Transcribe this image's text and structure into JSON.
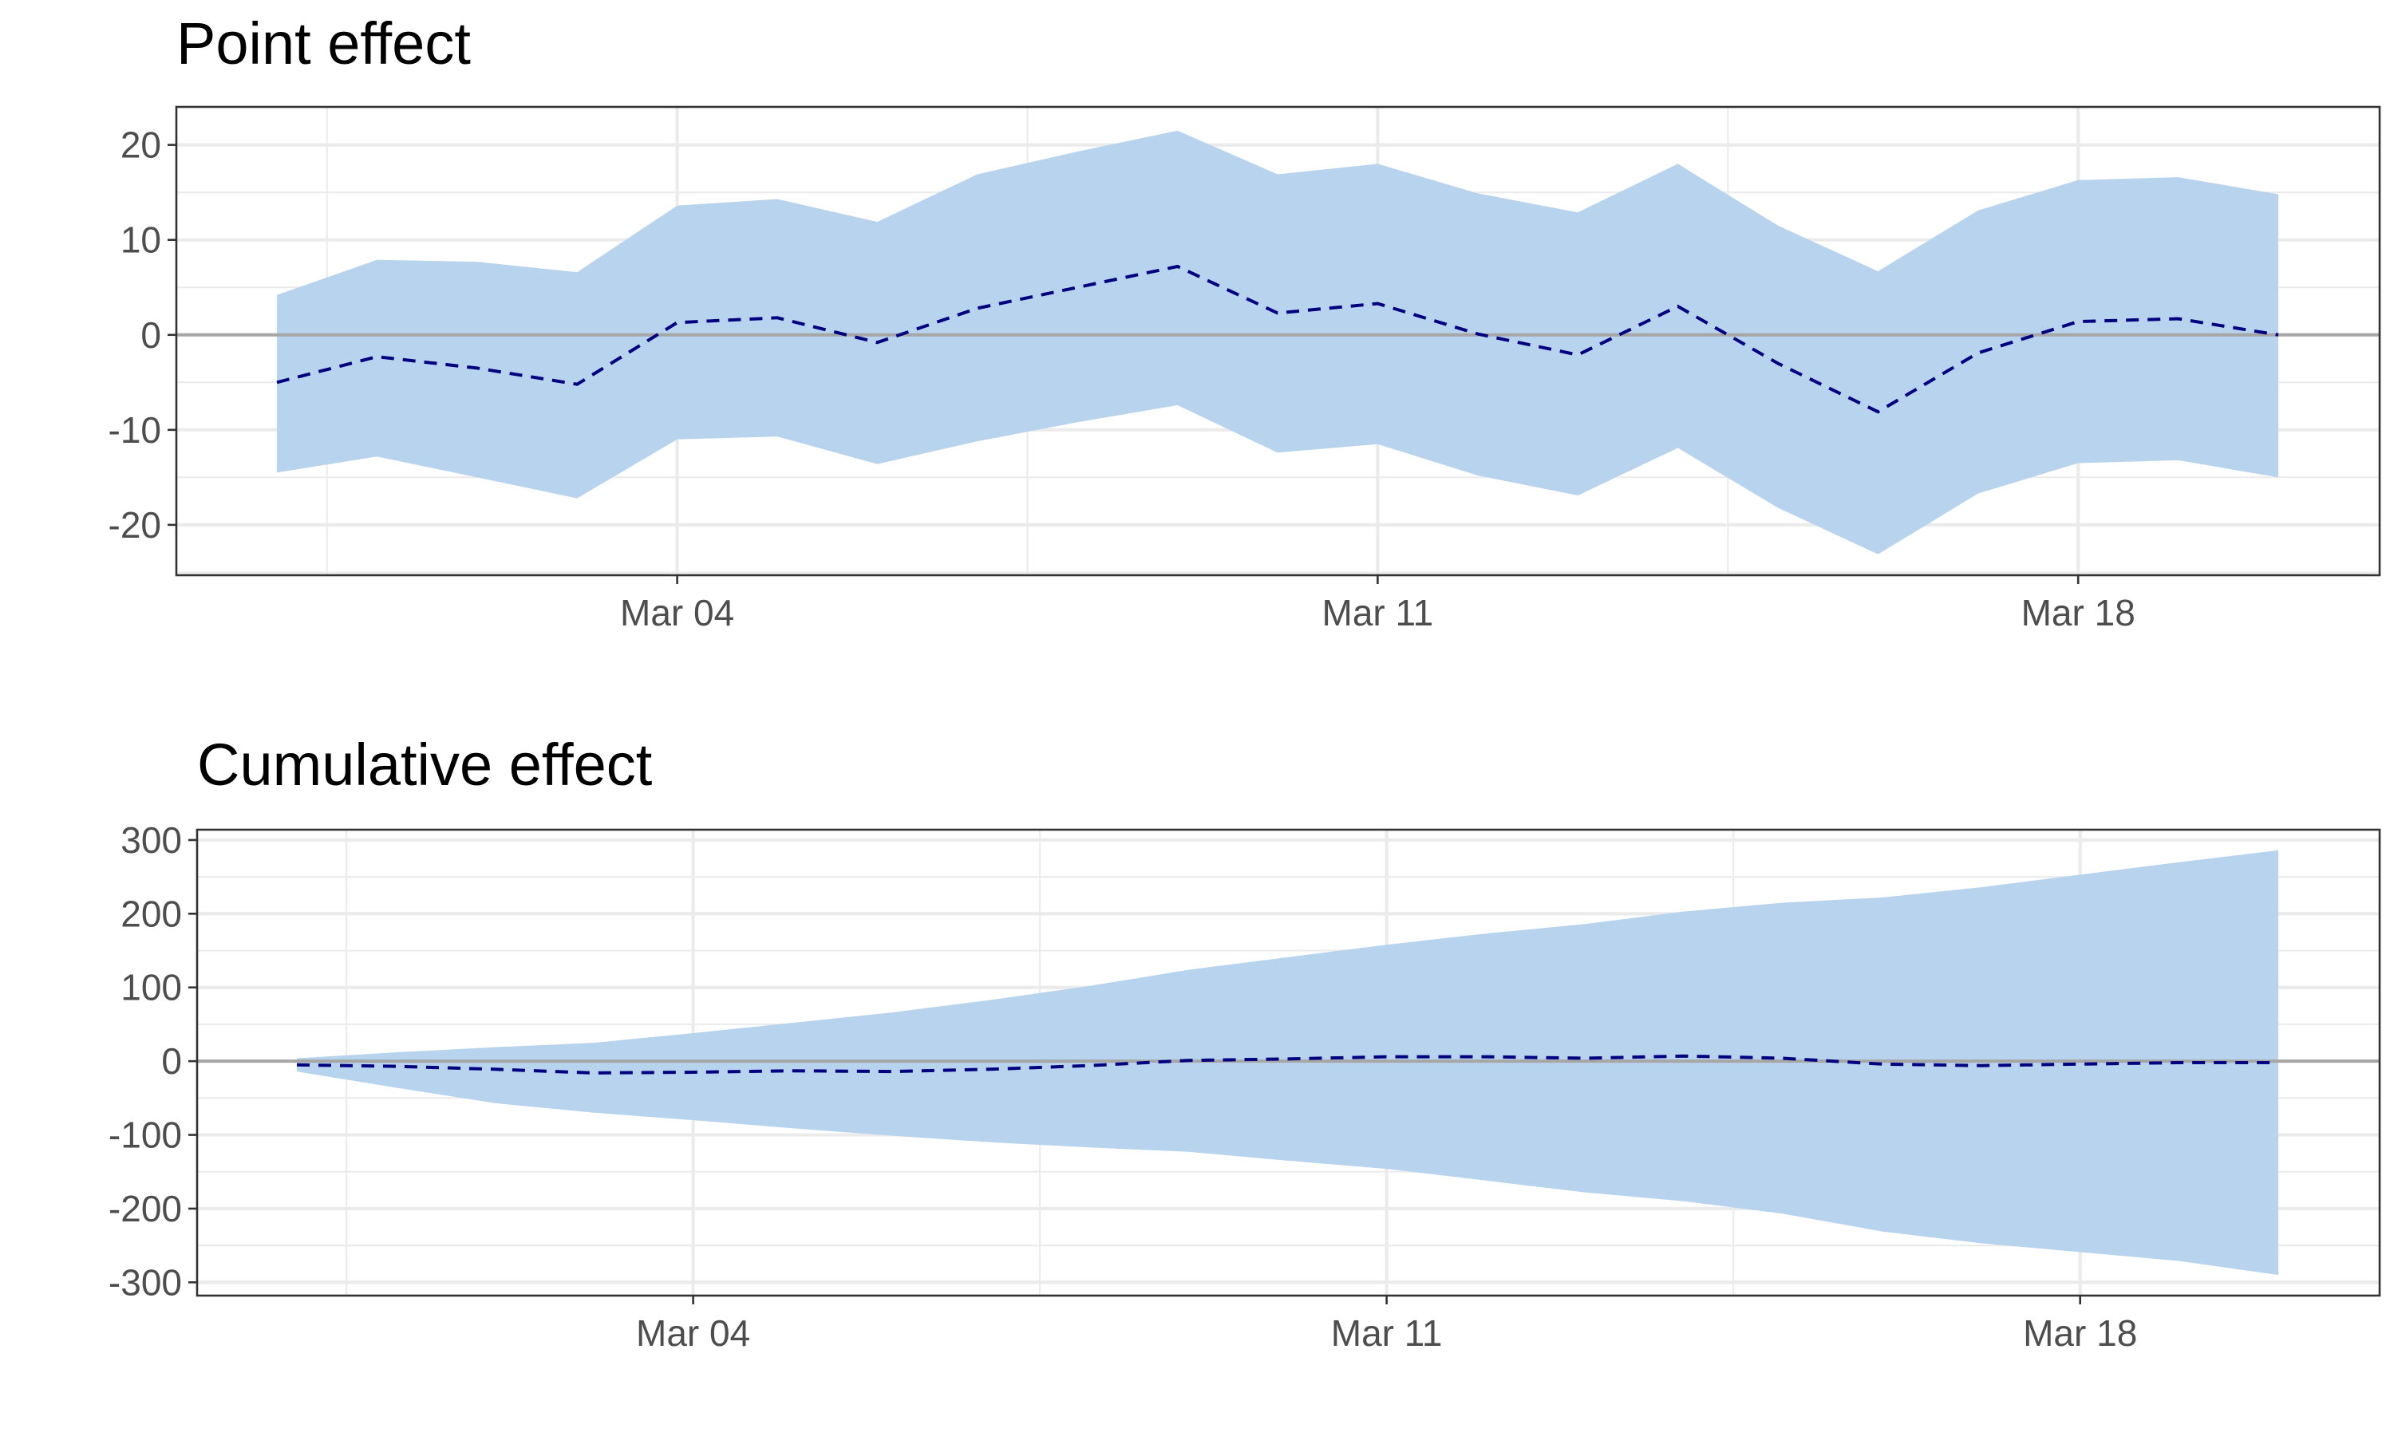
{
  "colors": {
    "band": "#b8d3ee",
    "line": "#000080",
    "zero": "#a6a6a6"
  },
  "chart_data": [
    {
      "type": "area",
      "title": "Point effect",
      "xlabel": "",
      "ylabel": "",
      "x": [
        "Feb 28",
        "Mar 01",
        "Mar 02",
        "Mar 03",
        "Mar 04",
        "Mar 05",
        "Mar 06",
        "Mar 07",
        "Mar 08",
        "Mar 09",
        "Mar 10",
        "Mar 11",
        "Mar 12",
        "Mar 13",
        "Mar 14",
        "Mar 15",
        "Mar 16",
        "Mar 17",
        "Mar 18",
        "Mar 19",
        "Mar 20"
      ],
      "x_ticks": [
        {
          "index": 4,
          "label": "Mar 04"
        },
        {
          "index": 11,
          "label": "Mar 11"
        },
        {
          "index": 18,
          "label": "Mar 18"
        }
      ],
      "y_ticks": [
        20,
        10,
        0,
        -10,
        -20
      ],
      "ylim": [
        -25.3,
        24
      ],
      "series": [
        {
          "name": "point effect",
          "values": [
            -5.0,
            -2.3,
            -3.5,
            -5.2,
            1.3,
            1.8,
            -0.8,
            2.8,
            5.0,
            7.2,
            2.3,
            3.3,
            0.1,
            -2.1,
            3.0,
            -3.0,
            -8.1,
            -1.9,
            1.4,
            1.7,
            0.0
          ]
        },
        {
          "name": "upper",
          "values": [
            4.2,
            7.9,
            7.7,
            6.6,
            13.6,
            14.3,
            11.9,
            16.9,
            19.3,
            21.5,
            16.9,
            18.0,
            14.9,
            12.9,
            18.0,
            11.5,
            6.7,
            13.1,
            16.3,
            16.6,
            14.8
          ]
        },
        {
          "name": "lower",
          "values": [
            -14.5,
            -12.8,
            -15.0,
            -17.2,
            -11.0,
            -10.7,
            -13.6,
            -11.2,
            -9.2,
            -7.4,
            -12.4,
            -11.5,
            -14.8,
            -16.9,
            -11.9,
            -18.2,
            -23.1,
            -16.7,
            -13.5,
            -13.2,
            -15.0
          ]
        }
      ]
    },
    {
      "type": "area",
      "title": "Cumulative effect",
      "xlabel": "",
      "ylabel": "",
      "x": [
        "Feb 28",
        "Mar 01",
        "Mar 02",
        "Mar 03",
        "Mar 04",
        "Mar 05",
        "Mar 06",
        "Mar 07",
        "Mar 08",
        "Mar 09",
        "Mar 10",
        "Mar 11",
        "Mar 12",
        "Mar 13",
        "Mar 14",
        "Mar 15",
        "Mar 16",
        "Mar 17",
        "Mar 18",
        "Mar 19",
        "Mar 20"
      ],
      "x_ticks": [
        {
          "index": 4,
          "label": "Mar 04"
        },
        {
          "index": 11,
          "label": "Mar 11"
        },
        {
          "index": 18,
          "label": "Mar 18"
        }
      ],
      "y_ticks": [
        300,
        200,
        100,
        0,
        -100,
        -200,
        -300
      ],
      "ylim": [
        -318,
        314
      ],
      "series": [
        {
          "name": "cumulative effect",
          "values": [
            -5,
            -7,
            -11,
            -16,
            -15,
            -13,
            -14,
            -11,
            -6,
            1,
            3,
            6,
            6,
            4,
            7,
            4,
            -4,
            -6,
            -4,
            -2,
            -2
          ]
        },
        {
          "name": "upper",
          "values": [
            4,
            12,
            19,
            25,
            38,
            52,
            66,
            83,
            102,
            124,
            141,
            158,
            173,
            186,
            203,
            215,
            222,
            236,
            253,
            270,
            286
          ]
        },
        {
          "name": "lower",
          "values": [
            -14,
            -36,
            -57,
            -70,
            -80,
            -91,
            -101,
            -110,
            -117,
            -123,
            -135,
            -146,
            -162,
            -178,
            -190,
            -207,
            -231,
            -247,
            -259,
            -271,
            -290
          ]
        }
      ]
    }
  ]
}
